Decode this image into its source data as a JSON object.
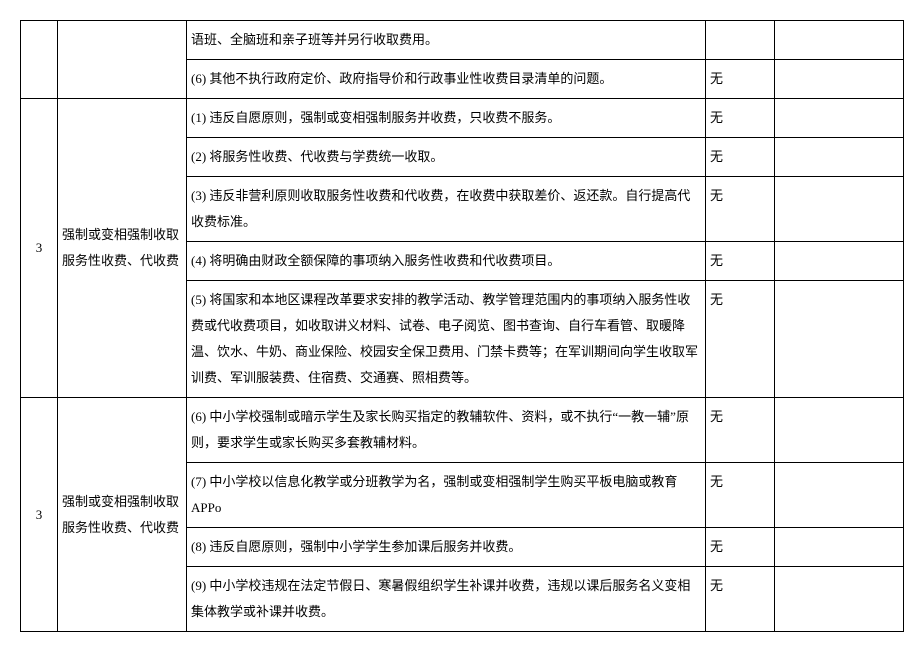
{
  "status_none": "无",
  "section_top": {
    "row_a": "语班、全脑班和亲子班等并另行收取费用。",
    "row_b": "(6) 其他不执行政府定价、政府指导价和行政事业性收费目录清单的问题。"
  },
  "section_3a": {
    "num": "3",
    "category": "强制或变相强制收取服务性收费、代收费",
    "rows": [
      "(1) 违反自愿原则，强制或变相强制服务并收费，只收费不服务。",
      "(2) 将服务性收费、代收费与学费统一收取。",
      "(3) 违反非营利原则收取服务性收费和代收费，在收费中获取差价、返还款。自行提高代收费标准。",
      "(4) 将明确由财政全额保障的事项纳入服务性收费和代收费项目。",
      "(5) 将国家和本地区课程改革要求安排的教学活动、教学管理范围内的事项纳入服务性收费或代收费项目，如收取讲义材料、试卷、电子阅览、图书查询、自行车看管、取暖降温、饮水、牛奶、商业保险、校园安全保卫费用、门禁卡费等；在军训期间向学生收取军训费、军训服装费、住宿费、交通赛、照相费等。"
    ]
  },
  "section_3b": {
    "num": "3",
    "category": "强制或变相强制收取服务性收费、代收费",
    "rows": [
      "(6) 中小学校强制或暗示学生及家长购买指定的教辅软件、资料，或不执行“一教一辅”原则，要求学生或家长购买多套教辅材料。",
      "(7) 中小学校以信息化教学或分班教学为名，强制或变相强制学生购买平板电脑或教育 APPo",
      "(8) 违反自愿原则，强制中小学学生参加课后服务并收费。",
      "(9) 中小学校违规在法定节假日、寒暑假组织学生补课并收费，违规以课后服务名义变相集体教学或补课并收费。"
    ]
  }
}
